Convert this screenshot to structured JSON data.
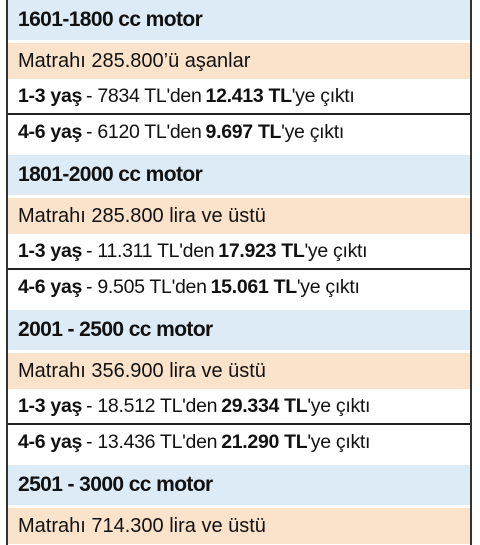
{
  "sections": [
    {
      "title": "1601-1800 cc motor",
      "note": "Matrahı 285.800’ü aşanlar",
      "rows": [
        {
          "age": "1-3 yaş",
          "from": "- 7834 TL'den",
          "to": "12.413 TL",
          "suffix": "'ye çıktı"
        },
        {
          "age": "4-6 yaş",
          "from": "- 6120 TL'den",
          "to": "9.697 TL",
          "suffix": "'ye çıktı"
        }
      ]
    },
    {
      "title": "1801-2000 cc motor",
      "note": "Matrahı 285.800 lira ve üstü",
      "rows": [
        {
          "age": "1-3 yaş",
          "from": "- 11.311 TL'den",
          "to": "17.923 TL",
          "suffix": "'ye çıktı"
        },
        {
          "age": "4-6 yaş",
          "from": "- 9.505 TL'den",
          "to": "15.061 TL",
          "suffix": "'ye çıktı"
        }
      ]
    },
    {
      "title": "2001 - 2500 cc motor",
      "note": "Matrahı 356.900 lira ve üstü",
      "rows": [
        {
          "age": "1-3 yaş",
          "from": "- 18.512 TL'den",
          "to": "29.334 TL",
          "suffix": "'ye çıktı"
        },
        {
          "age": "4-6 yaş",
          "from": "- 13.436 TL'den",
          "to": "21.290 TL",
          "suffix": "'ye çıktı"
        }
      ]
    },
    {
      "title": "2501 - 3000 cc motor",
      "note": "Matrahı 714.300 lira ve üstü",
      "rows": []
    }
  ]
}
